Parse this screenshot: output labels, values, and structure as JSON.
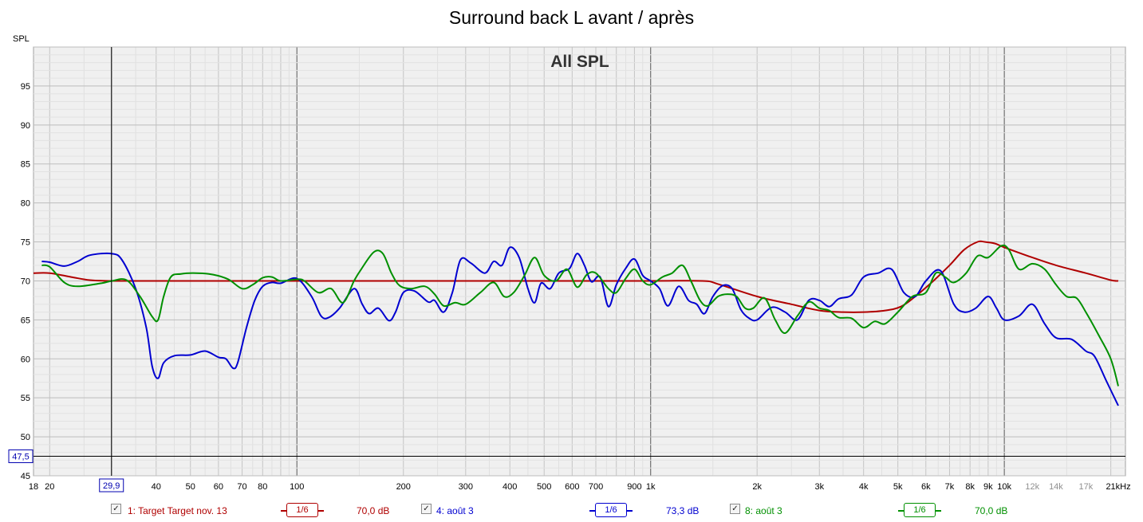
{
  "chart_data": {
    "type": "line",
    "title": "Surround back L avant / après",
    "overlay_title": "All SPL",
    "ylabel": "SPL",
    "xlabel": "",
    "x_scale": "log",
    "xlim": [
      18,
      22000
    ],
    "ylim": [
      45,
      100
    ],
    "x_ticks": [
      {
        "v": 18,
        "label": "18"
      },
      {
        "v": 20,
        "label": "20"
      },
      {
        "v": 40,
        "label": "40"
      },
      {
        "v": 50,
        "label": "50"
      },
      {
        "v": 60,
        "label": "60"
      },
      {
        "v": 70,
        "label": "70"
      },
      {
        "v": 80,
        "label": "80"
      },
      {
        "v": 100,
        "label": "100"
      },
      {
        "v": 200,
        "label": "200"
      },
      {
        "v": 300,
        "label": "300"
      },
      {
        "v": 400,
        "label": "400"
      },
      {
        "v": 500,
        "label": "500"
      },
      {
        "v": 600,
        "label": "600"
      },
      {
        "v": 700,
        "label": "700"
      },
      {
        "v": 900,
        "label": "900"
      },
      {
        "v": 1000,
        "label": "1k"
      },
      {
        "v": 2000,
        "label": "2k"
      },
      {
        "v": 3000,
        "label": "3k"
      },
      {
        "v": 4000,
        "label": "4k"
      },
      {
        "v": 5000,
        "label": "5k"
      },
      {
        "v": 6000,
        "label": "6k"
      },
      {
        "v": 7000,
        "label": "7k"
      },
      {
        "v": 8000,
        "label": "8k"
      },
      {
        "v": 9000,
        "label": "9k"
      },
      {
        "v": 10000,
        "label": "10k"
      },
      {
        "v": 12000,
        "label": "12k"
      },
      {
        "v": 14000,
        "label": "14k"
      },
      {
        "v": 17000,
        "label": "17k"
      },
      {
        "v": 21000,
        "label": "21kHz"
      }
    ],
    "y_ticks": [
      45,
      50,
      55,
      60,
      65,
      70,
      75,
      80,
      85,
      90,
      95
    ],
    "grid": true,
    "cursor": {
      "x": 29.9,
      "x_label": "29,9",
      "y": 47.5,
      "y_label": "47,5"
    },
    "series": [
      {
        "name": "1: Target Target nov. 13",
        "color": "#b00000",
        "smoothing": "1/6",
        "level": "70,0 dB",
        "points": [
          [
            18,
            71
          ],
          [
            20,
            71
          ],
          [
            23,
            70.5
          ],
          [
            26,
            70.1
          ],
          [
            30,
            70
          ],
          [
            40,
            70
          ],
          [
            100,
            70
          ],
          [
            500,
            70
          ],
          [
            1000,
            70
          ],
          [
            1400,
            70
          ],
          [
            1550,
            69.6
          ],
          [
            2000,
            68
          ],
          [
            2500,
            67
          ],
          [
            3000,
            66.2
          ],
          [
            3500,
            66
          ],
          [
            4000,
            66
          ],
          [
            4600,
            66.2
          ],
          [
            5100,
            66.7
          ],
          [
            5600,
            68
          ],
          [
            6300,
            70
          ],
          [
            7000,
            72
          ],
          [
            7700,
            74
          ],
          [
            8400,
            75
          ],
          [
            8800,
            75
          ],
          [
            9400,
            74.8
          ],
          [
            10000,
            74.3
          ],
          [
            12000,
            73
          ],
          [
            14000,
            72
          ],
          [
            17000,
            71
          ],
          [
            20000,
            70.1
          ],
          [
            21000,
            70
          ]
        ]
      },
      {
        "name": "4: août 3",
        "color": "#0000d0",
        "smoothing": "1/6",
        "level": "73,3 dB",
        "points": [
          [
            19,
            72.5
          ],
          [
            20,
            72.4
          ],
          [
            22,
            71.9
          ],
          [
            24,
            72.5
          ],
          [
            26,
            73.3
          ],
          [
            29.9,
            73.5
          ],
          [
            32,
            72.7
          ],
          [
            35,
            69
          ],
          [
            37.5,
            64
          ],
          [
            39,
            59
          ],
          [
            40.5,
            57.5
          ],
          [
            42,
            59.5
          ],
          [
            45,
            60.4
          ],
          [
            50,
            60.5
          ],
          [
            55,
            61
          ],
          [
            60,
            60.2
          ],
          [
            63,
            60
          ],
          [
            66,
            58.8
          ],
          [
            68,
            59.5
          ],
          [
            72,
            64
          ],
          [
            76,
            67.5
          ],
          [
            80,
            69.3
          ],
          [
            85,
            69.8
          ],
          [
            90,
            69.7
          ],
          [
            100,
            70.3
          ],
          [
            110,
            68
          ],
          [
            117,
            65.5
          ],
          [
            123,
            65.3
          ],
          [
            132,
            66.5
          ],
          [
            145,
            69
          ],
          [
            153,
            67
          ],
          [
            160,
            65.8
          ],
          [
            170,
            66.5
          ],
          [
            182,
            64.9
          ],
          [
            190,
            66
          ],
          [
            200,
            68.5
          ],
          [
            215,
            68.7
          ],
          [
            235,
            67.3
          ],
          [
            245,
            67.5
          ],
          [
            260,
            66
          ],
          [
            275,
            68.5
          ],
          [
            290,
            72.7
          ],
          [
            310,
            72.3
          ],
          [
            340,
            71
          ],
          [
            360,
            72.5
          ],
          [
            380,
            72
          ],
          [
            400,
            74.3
          ],
          [
            425,
            73
          ],
          [
            450,
            69
          ],
          [
            470,
            67.2
          ],
          [
            490,
            69.7
          ],
          [
            520,
            69
          ],
          [
            550,
            71
          ],
          [
            590,
            71.6
          ],
          [
            620,
            73.5
          ],
          [
            650,
            72
          ],
          [
            680,
            69.9
          ],
          [
            720,
            70.5
          ],
          [
            760,
            66.7
          ],
          [
            800,
            69.5
          ],
          [
            850,
            71.6
          ],
          [
            900,
            72.8
          ],
          [
            950,
            70.7
          ],
          [
            1000,
            70
          ],
          [
            1060,
            69
          ],
          [
            1120,
            66.8
          ],
          [
            1200,
            69.3
          ],
          [
            1280,
            67.5
          ],
          [
            1350,
            67
          ],
          [
            1420,
            65.8
          ],
          [
            1500,
            68
          ],
          [
            1600,
            69.4
          ],
          [
            1700,
            69
          ],
          [
            1800,
            66.3
          ],
          [
            1900,
            65.2
          ],
          [
            2000,
            65
          ],
          [
            2200,
            66.6
          ],
          [
            2400,
            66
          ],
          [
            2600,
            65
          ],
          [
            2800,
            67.5
          ],
          [
            3000,
            67.5
          ],
          [
            3200,
            66.7
          ],
          [
            3400,
            67.7
          ],
          [
            3700,
            68.2
          ],
          [
            4000,
            70.5
          ],
          [
            4400,
            71
          ],
          [
            4800,
            71.5
          ],
          [
            5200,
            68.5
          ],
          [
            5600,
            68
          ],
          [
            6000,
            70
          ],
          [
            6600,
            71.3
          ],
          [
            7200,
            67
          ],
          [
            7700,
            66
          ],
          [
            8300,
            66.5
          ],
          [
            9000,
            68
          ],
          [
            9500,
            66.5
          ],
          [
            10000,
            65
          ],
          [
            11000,
            65.5
          ],
          [
            12000,
            67
          ],
          [
            13000,
            64.5
          ],
          [
            14000,
            62.7
          ],
          [
            15500,
            62.5
          ],
          [
            17000,
            61
          ],
          [
            18000,
            60.3
          ],
          [
            19500,
            57
          ],
          [
            21000,
            54
          ]
        ]
      },
      {
        "name": "8: août 3",
        "color": "#009000",
        "smoothing": "1/6",
        "level": "70,0 dB",
        "points": [
          [
            19,
            72
          ],
          [
            20,
            71.8
          ],
          [
            22,
            69.8
          ],
          [
            24,
            69.3
          ],
          [
            28,
            69.7
          ],
          [
            30,
            70
          ],
          [
            33,
            70.1
          ],
          [
            36,
            68
          ],
          [
            39,
            65.4
          ],
          [
            40.5,
            65
          ],
          [
            42,
            68
          ],
          [
            44,
            70.5
          ],
          [
            47,
            70.9
          ],
          [
            52,
            71
          ],
          [
            58,
            70.8
          ],
          [
            64,
            70.2
          ],
          [
            70,
            69
          ],
          [
            75,
            69.5
          ],
          [
            80,
            70.4
          ],
          [
            85,
            70.5
          ],
          [
            90,
            70
          ],
          [
            100,
            70.2
          ],
          [
            105,
            70
          ],
          [
            115,
            68.5
          ],
          [
            125,
            69
          ],
          [
            135,
            67.2
          ],
          [
            145,
            70
          ],
          [
            152,
            71.5
          ],
          [
            165,
            73.7
          ],
          [
            175,
            73.5
          ],
          [
            185,
            71
          ],
          [
            195,
            69.4
          ],
          [
            210,
            69
          ],
          [
            230,
            69.3
          ],
          [
            245,
            68.3
          ],
          [
            260,
            66.8
          ],
          [
            280,
            67.2
          ],
          [
            300,
            67
          ],
          [
            330,
            68.5
          ],
          [
            360,
            69.8
          ],
          [
            385,
            68
          ],
          [
            410,
            68.5
          ],
          [
            440,
            70.7
          ],
          [
            470,
            73
          ],
          [
            500,
            70.7
          ],
          [
            540,
            70
          ],
          [
            580,
            71.5
          ],
          [
            620,
            69.2
          ],
          [
            660,
            70.8
          ],
          [
            700,
            71
          ],
          [
            760,
            69
          ],
          [
            800,
            68.5
          ],
          [
            850,
            70.3
          ],
          [
            900,
            71.5
          ],
          [
            950,
            70
          ],
          [
            1000,
            69.5
          ],
          [
            1080,
            70.5
          ],
          [
            1150,
            71
          ],
          [
            1230,
            72
          ],
          [
            1300,
            70
          ],
          [
            1380,
            67.5
          ],
          [
            1450,
            66.8
          ],
          [
            1550,
            68
          ],
          [
            1650,
            68.3
          ],
          [
            1750,
            68
          ],
          [
            1850,
            66.5
          ],
          [
            1950,
            66.5
          ],
          [
            2100,
            67.8
          ],
          [
            2250,
            65
          ],
          [
            2400,
            63.3
          ],
          [
            2600,
            65.5
          ],
          [
            2800,
            67.3
          ],
          [
            3000,
            66.5
          ],
          [
            3200,
            66.2
          ],
          [
            3400,
            65.3
          ],
          [
            3700,
            65.2
          ],
          [
            4000,
            64
          ],
          [
            4300,
            64.8
          ],
          [
            4600,
            64.5
          ],
          [
            5000,
            66
          ],
          [
            5500,
            68
          ],
          [
            6000,
            68.5
          ],
          [
            6400,
            71
          ],
          [
            6800,
            70.5
          ],
          [
            7200,
            69.8
          ],
          [
            7800,
            71
          ],
          [
            8400,
            73.2
          ],
          [
            9000,
            73
          ],
          [
            9800,
            74.5
          ],
          [
            10300,
            74
          ],
          [
            11000,
            71.5
          ],
          [
            12000,
            72.2
          ],
          [
            13000,
            71.5
          ],
          [
            14000,
            69.5
          ],
          [
            15000,
            68
          ],
          [
            16000,
            67.8
          ],
          [
            17000,
            66
          ],
          [
            18500,
            63
          ],
          [
            20000,
            60
          ],
          [
            21000,
            56.5
          ]
        ]
      }
    ]
  },
  "legend": [
    {
      "label": "1: Target Target nov. 13",
      "smoothing": "1/6",
      "level": "70,0 dB",
      "color": "#b00000",
      "check": "✓"
    },
    {
      "label": "4: août 3",
      "smoothing": "1/6",
      "level": "73,3 dB",
      "color": "#0000d0",
      "check": "✓"
    },
    {
      "label": "8: août 3",
      "smoothing": "1/6",
      "level": "70,0 dB",
      "color": "#009000",
      "check": "✓"
    }
  ]
}
